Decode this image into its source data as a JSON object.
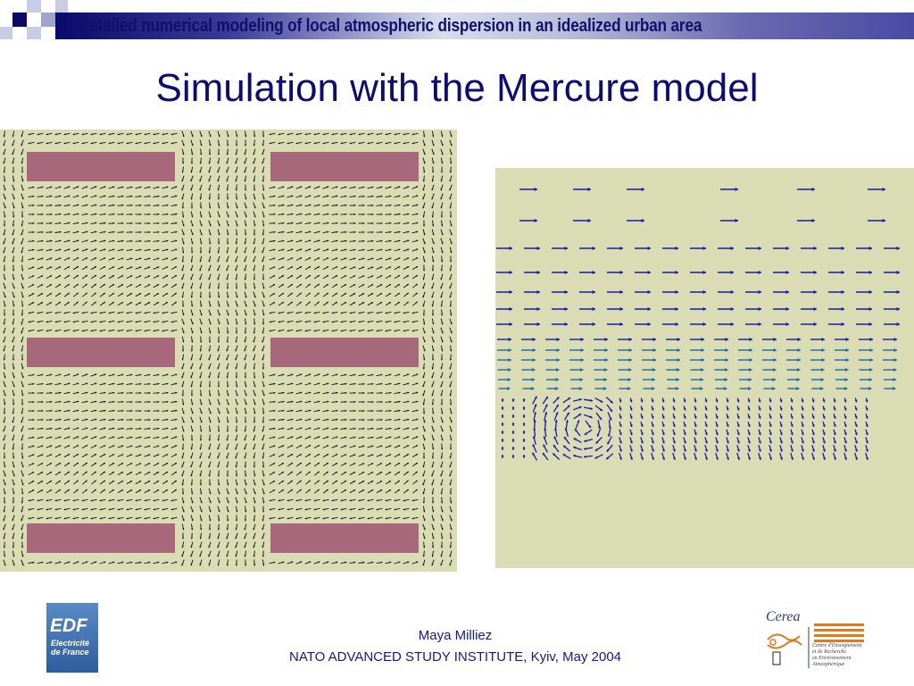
{
  "header": {
    "title": "Detailed numerical modeling of local atmospheric dispersion in an idealized urban area"
  },
  "slide": {
    "title": "Simulation with the Mercure model"
  },
  "figures": {
    "plan_view": {
      "background": "#dadcb4",
      "building_color": "#a8687c",
      "arrow_color": "#111111"
    },
    "vertical_section": {
      "background": "#dadcb4",
      "arrow_color": "#1a1aa8"
    }
  },
  "footer": {
    "author": "Maya Milliez",
    "event": "NATO ADVANCED STUDY INSTITUTE, Kyiv, May 2004"
  },
  "logos": {
    "edf": {
      "main": "EDF",
      "sub_line1": "Electricité",
      "sub_line2": "de France"
    },
    "cerea": {
      "name": "Cerea",
      "subtitle": "Centre d'Enseignement\net de Recherche\nen Environnement\nAtmosphérique"
    }
  },
  "colors": {
    "title": "#0c0c78",
    "banner_dark": "#0a0a6a",
    "footer_text": "#16169a"
  }
}
